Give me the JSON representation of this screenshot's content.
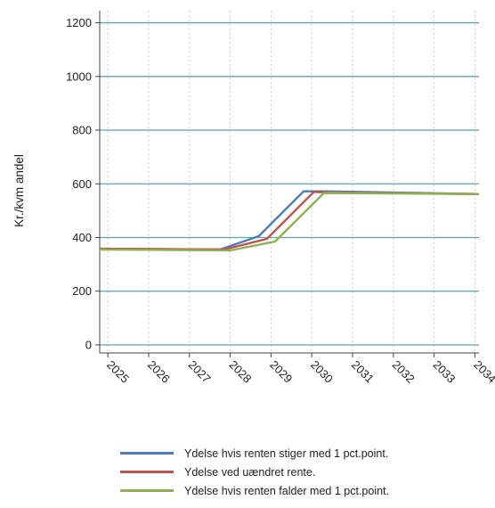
{
  "chart_data": {
    "type": "line",
    "title": "",
    "xlabel": "",
    "ylabel": "Kr./kvm andel",
    "ylim": [
      0,
      1200
    ],
    "yticks": [
      0,
      200,
      400,
      600,
      800,
      1000,
      1200
    ],
    "xticks": [
      "2025",
      "2026",
      "2027",
      "2028",
      "2029",
      "2030",
      "2031",
      "2032",
      "2033",
      "2034"
    ],
    "xlim": [
      2024.8,
      2034.1
    ],
    "grid": "horizontal solid teal, vertical dotted grey",
    "legend_position": "bottom",
    "series": [
      {
        "name": "Ydelse hvis renten stiger med 1 pct.point.",
        "color": "#4f7bb6",
        "points": [
          [
            2024.8,
            358
          ],
          [
            2027.75,
            355
          ],
          [
            2028.7,
            405
          ],
          [
            2029.8,
            572
          ],
          [
            2030.3,
            572
          ],
          [
            2034.1,
            562
          ]
        ]
      },
      {
        "name": "Ydelse ved uændret rente.",
        "color": "#c0504d",
        "points": [
          [
            2024.8,
            358
          ],
          [
            2027.85,
            355
          ],
          [
            2028.9,
            395
          ],
          [
            2030.05,
            570
          ],
          [
            2030.4,
            568
          ],
          [
            2034.1,
            562
          ]
        ]
      },
      {
        "name": "Ydelse hvis renten falder med 1 pct.point.",
        "color": "#8fb050",
        "points": [
          [
            2024.8,
            355
          ],
          [
            2028.0,
            352
          ],
          [
            2029.1,
            385
          ],
          [
            2030.3,
            566
          ],
          [
            2034.1,
            562
          ]
        ]
      }
    ]
  },
  "colors": {
    "horizontal_grid": "#5aa5a8",
    "vertical_grid": "#c9c9c9",
    "axis": "#444444"
  }
}
